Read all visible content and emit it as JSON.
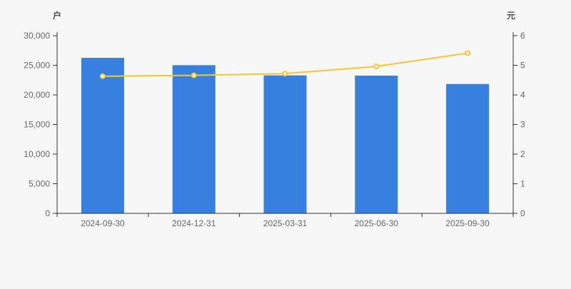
{
  "chart_data": {
    "type": "bar",
    "subtype": "bar+line-dual-axis",
    "categories": [
      "2024-09-30",
      "2024-12-31",
      "2025-03-31",
      "2025-06-30",
      "2025-09-30"
    ],
    "series": [
      {
        "type": "bar",
        "y_axis": "left",
        "values": [
          26260,
          25020,
          23300,
          23250,
          21840
        ],
        "color": "#3780E0"
      },
      {
        "type": "line",
        "y_axis": "right",
        "values": [
          4.63,
          4.66,
          4.72,
          4.96,
          5.41
        ],
        "color": "#F7C52C",
        "marker": "hollow-circle"
      }
    ],
    "left_axis": {
      "label": "户",
      "min": 0,
      "max": 30000,
      "tick_step": 5000,
      "tick_labels": [
        "0",
        "5,000",
        "10,000",
        "15,000",
        "20,000",
        "25,000",
        "30,000"
      ]
    },
    "right_axis": {
      "label": "元",
      "min": 0,
      "max": 6,
      "tick_step": 1,
      "tick_labels": [
        "0",
        "1",
        "2",
        "3",
        "4",
        "5",
        "6"
      ]
    },
    "grid": false,
    "legend": false,
    "colors": {
      "background": "#F7F7F7",
      "axis_line": "#333333",
      "tick_label": "#666666",
      "axis_name": "#4D4D4D",
      "marker_fill": "#FFFFFF"
    }
  }
}
